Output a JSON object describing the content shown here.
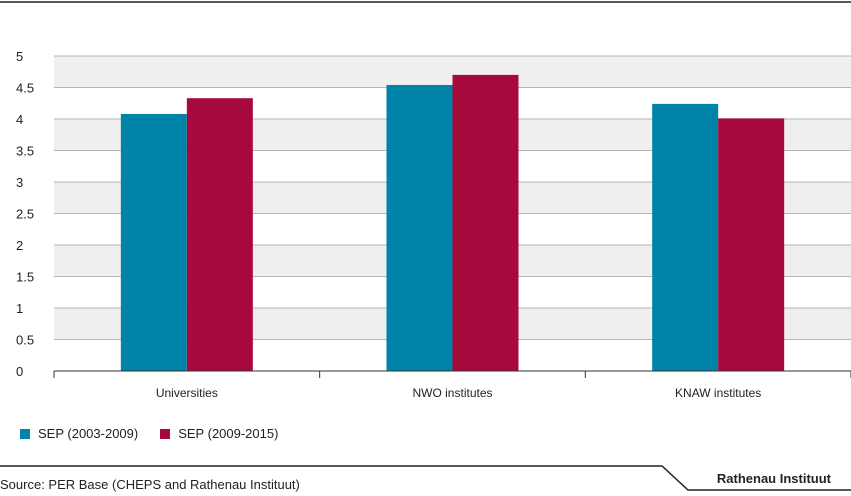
{
  "chart_data": {
    "type": "bar",
    "categories": [
      "Universities",
      "NWO institutes",
      "KNAW institutes"
    ],
    "series": [
      {
        "name": "SEP (2003-2009)",
        "color": "#0083a9",
        "values": [
          4.08,
          4.54,
          4.24
        ]
      },
      {
        "name": "SEP (2009-2015)",
        "color": "#a8093c",
        "values": [
          4.33,
          4.7,
          4.01
        ]
      }
    ],
    "yticks": [
      "0",
      "0.5",
      "1",
      "1.5",
      "2",
      "2.5",
      "3",
      "3.5",
      "4",
      "4.5",
      "5"
    ],
    "ylim": [
      0,
      5
    ],
    "grid": "horizontal, alternating bands",
    "legend_position": "bottom-left"
  },
  "footer": {
    "source": "Source: PER Base (CHEPS and Rathenau Instituut)",
    "brand": "Rathenau Instituut"
  }
}
